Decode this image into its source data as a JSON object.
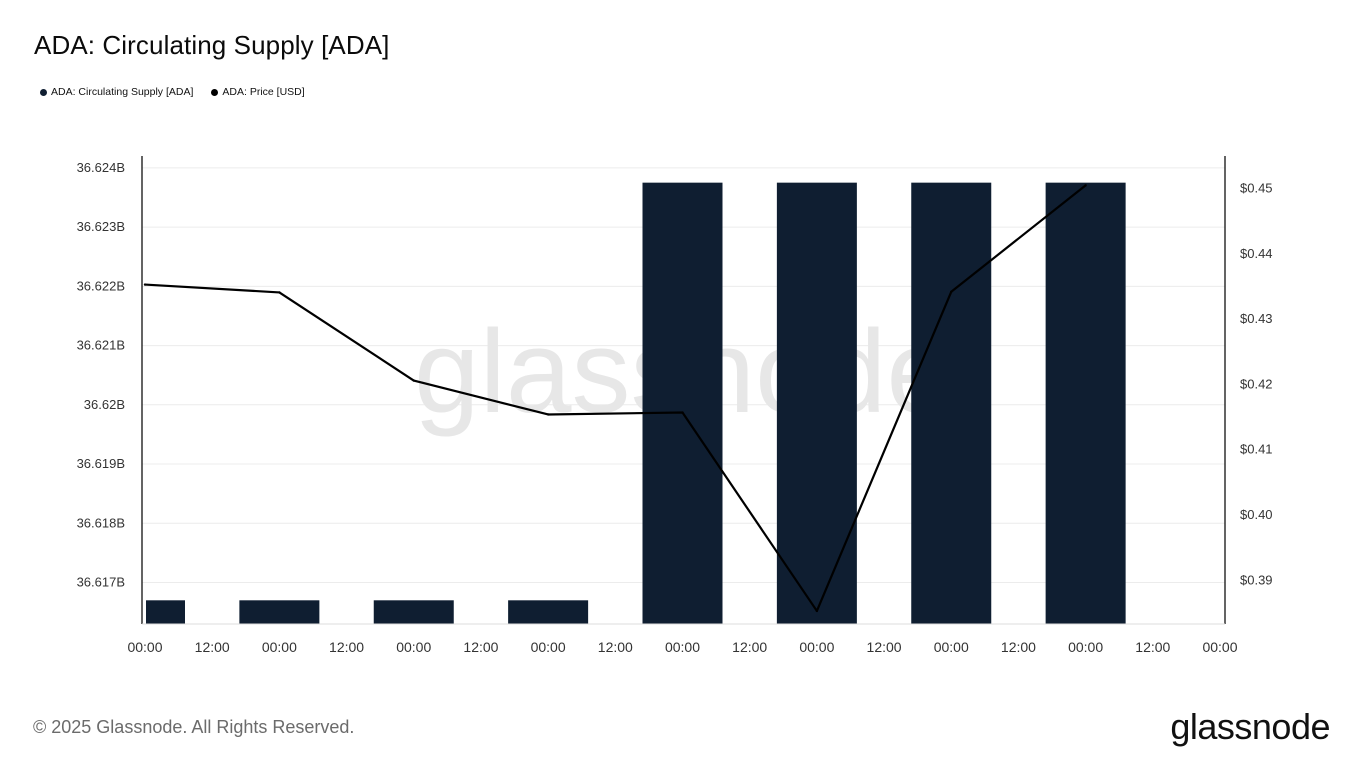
{
  "title": "ADA: Circulating Supply [ADA]",
  "legend": [
    {
      "label": "ADA: Circulating Supply [ADA]",
      "color": "#0f1e31"
    },
    {
      "label": "ADA: Price [USD]",
      "color": "#000000"
    }
  ],
  "watermark": "glassnode",
  "footer": {
    "copyright": "© 2025 Glassnode. All Rights Reserved.",
    "logo": "glassnode"
  },
  "chart_data": {
    "type": "bar+line",
    "x_tick_labels": [
      "00:00",
      "12:00",
      "00:00",
      "12:00",
      "00:00",
      "12:00",
      "00:00",
      "12:00",
      "00:00",
      "12:00",
      "00:00",
      "12:00",
      "00:00",
      "12:00",
      "00:00",
      "12:00",
      "00:00"
    ],
    "y_left": {
      "label": "",
      "ticks": [
        36.617,
        36.618,
        36.619,
        36.62,
        36.621,
        36.622,
        36.623,
        36.624
      ],
      "tick_labels": [
        "36.617B",
        "36.618B",
        "36.619B",
        "36.62B",
        "36.621B",
        "36.622B",
        "36.623B",
        "36.624B"
      ],
      "range": [
        36.6163,
        36.6242
      ]
    },
    "y_right": {
      "label": "",
      "ticks": [
        0.39,
        0.4,
        0.41,
        0.42,
        0.43,
        0.44,
        0.45
      ],
      "tick_labels": [
        "$0.39",
        "$0.40",
        "$0.41",
        "$0.42",
        "$0.43",
        "$0.44",
        "$0.45"
      ],
      "range": [
        0.3833,
        0.455
      ]
    },
    "series": [
      {
        "name": "ADA: Circulating Supply [ADA]",
        "type": "bar",
        "color": "#0f1e31",
        "unit": "B ADA",
        "points": [
          {
            "x": 0,
            "value": 36.6167
          },
          {
            "x": 1,
            "value": 36.6167
          },
          {
            "x": 2,
            "value": 36.6167
          },
          {
            "x": 3,
            "value": 36.6167
          },
          {
            "x": 4,
            "value": 36.62375
          },
          {
            "x": 5,
            "value": 36.62375
          },
          {
            "x": 6,
            "value": 36.62375
          },
          {
            "x": 7,
            "value": 36.62375
          }
        ]
      },
      {
        "name": "ADA: Price [USD]",
        "type": "line",
        "color": "#000000",
        "axis": "right",
        "points": [
          {
            "x": 0,
            "value": 0.4353
          },
          {
            "x": 1,
            "value": 0.4341
          },
          {
            "x": 2,
            "value": 0.4206
          },
          {
            "x": 3,
            "value": 0.4154
          },
          {
            "x": 4,
            "value": 0.4157
          },
          {
            "x": 5,
            "value": 0.3853
          },
          {
            "x": 6,
            "value": 0.4342
          },
          {
            "x": 7,
            "value": 0.4505
          }
        ]
      }
    ],
    "grid": true,
    "legend_position": "top-left"
  }
}
